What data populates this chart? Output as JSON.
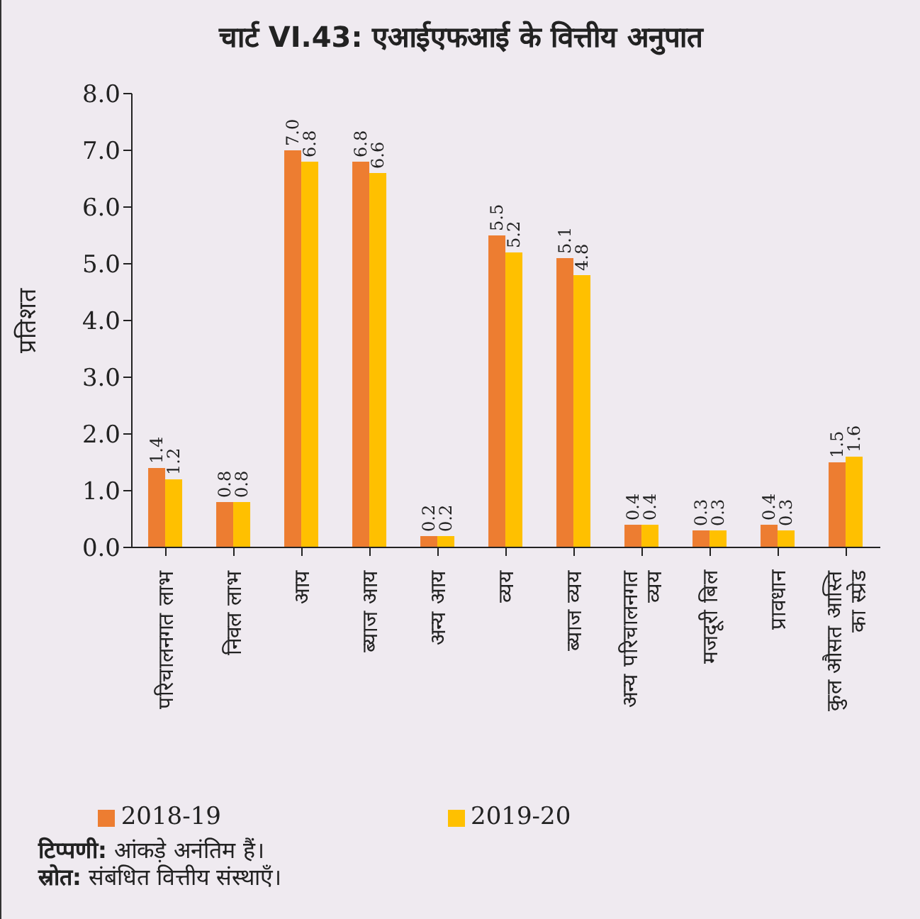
{
  "chart_data": {
    "type": "bar",
    "title": "चार्ट VI.43: एआईएफआई के वित्तीय अनुपात",
    "ylabel": "प्रतिशत",
    "categories": [
      "परिचालनगत लाभ",
      "निवल लाभ",
      "आय",
      "ब्याज आय",
      "अन्य आय",
      "व्यय",
      "ब्याज व्यय",
      "अन्य परिचालनगत व्यय",
      "मजदूरी बिल",
      "प्रावधान",
      "कुल औसत आस्ति का स्प्रेड"
    ],
    "series": [
      {
        "name": "2018-19",
        "color": "#ed7d31",
        "values": [
          1.4,
          0.8,
          7.0,
          6.8,
          0.2,
          5.5,
          5.1,
          0.4,
          0.3,
          0.4,
          1.5
        ],
        "value_labels": [
          "1.4",
          "0.8",
          "7.0",
          "6.8",
          "0.2",
          "5.5",
          "5.1",
          "0.4",
          "0.3",
          "0.4",
          "1.5"
        ]
      },
      {
        "name": "2019-20",
        "color": "#ffc000",
        "values": [
          1.2,
          0.8,
          6.8,
          6.6,
          0.2,
          5.2,
          4.8,
          0.4,
          0.3,
          0.3,
          1.6
        ],
        "value_labels": [
          "1.2",
          "0.8",
          "6.8",
          "6.6",
          "0.2",
          "5.2",
          "4.8",
          "0.4",
          "0.3",
          "0.3",
          "1.6"
        ]
      }
    ],
    "ylim": [
      0,
      8
    ],
    "yticks": [
      {
        "value": 0,
        "label": "0.0"
      },
      {
        "value": 1,
        "label": "1.0"
      },
      {
        "value": 2,
        "label": "2.0"
      },
      {
        "value": 3,
        "label": "3.0"
      },
      {
        "value": 4,
        "label": "4.0"
      },
      {
        "value": 5,
        "label": "5.0"
      },
      {
        "value": 6,
        "label": "6.0"
      },
      {
        "value": 7,
        "label": "7.0"
      },
      {
        "value": 8,
        "label": "8.0"
      }
    ],
    "grid": false,
    "legend": "bottom",
    "annotations": [
      "टिप्पणी: आंकड़े अनंतिम हैं।",
      "स्रोत: संबंधित वित्तीय संस्थाएँ।"
    ]
  }
}
